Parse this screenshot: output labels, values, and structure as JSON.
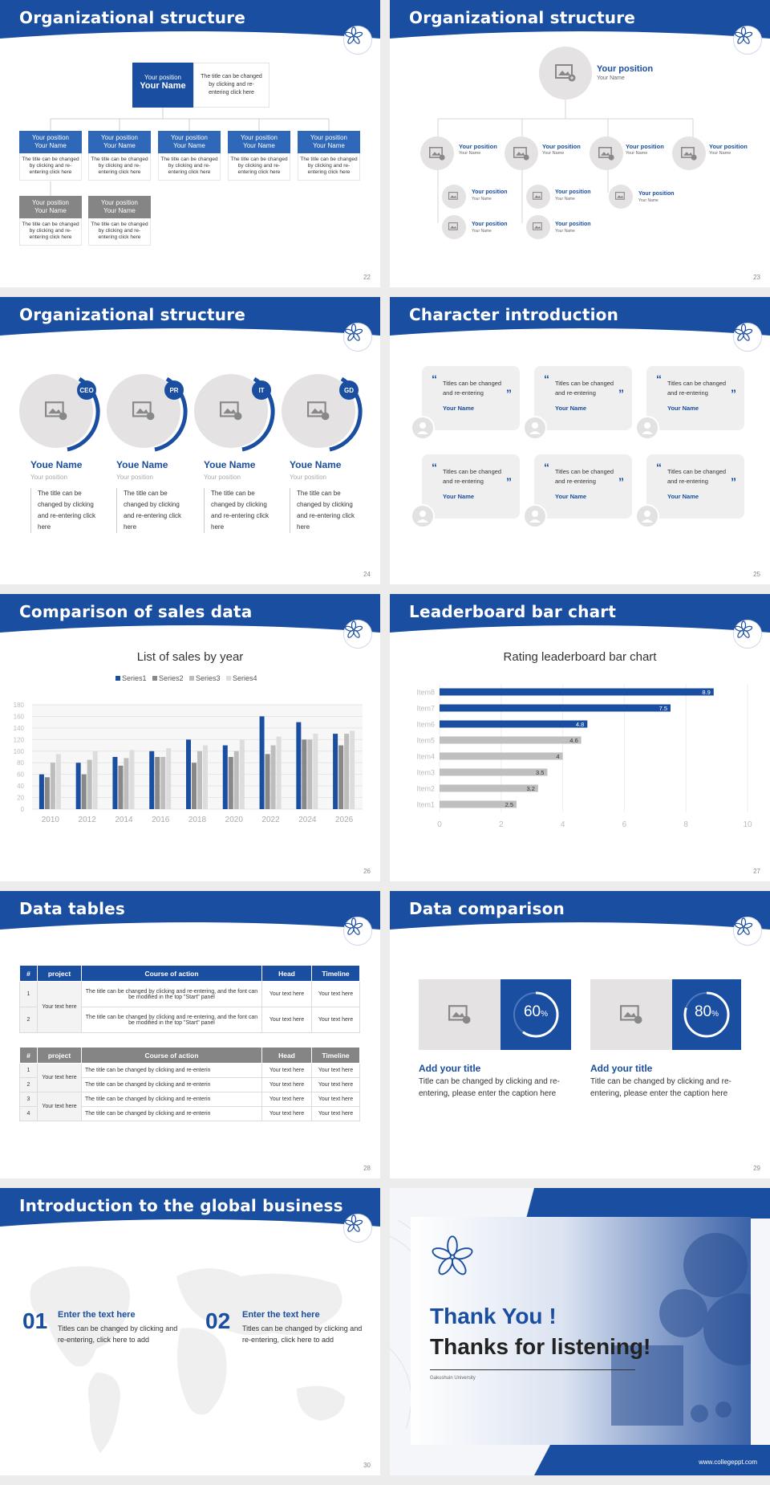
{
  "colors": {
    "brand": "#1a4ea0",
    "grey_box": "#858585",
    "light_grey": "#e4e2e2"
  },
  "slides": {
    "s22": {
      "title": "Organizational structure",
      "page": "22",
      "top": {
        "position": "Your position",
        "name": "Your Name",
        "desc": "The title can be changed by clicking and re-entering click here"
      },
      "row1": [
        {
          "position": "Your position",
          "name": "Your Name",
          "desc": "The title can be changed by clicking and re-entering click here"
        },
        {
          "position": "Your position",
          "name": "Your Name",
          "desc": "The title can be changed by clicking and re-entering click here"
        },
        {
          "position": "Your position",
          "name": "Your Name",
          "desc": "The title can be changed by clicking and re-entering click here"
        },
        {
          "position": "Your position",
          "name": "Your Name",
          "desc": "The title can be changed by clicking and re-entering click here"
        },
        {
          "position": "Your position",
          "name": "Your Name",
          "desc": "The title can be changed by clicking and re-entering click here"
        }
      ],
      "row2": [
        {
          "position": "Your position",
          "name": "Your Name",
          "desc": "The title can be changed by clicking and re-entering click here"
        },
        {
          "position": "Your position",
          "name": "Your Name",
          "desc": "The title can be changed by clicking and re-entering click here"
        }
      ]
    },
    "s23": {
      "title": "Organizational structure",
      "page": "23",
      "top": {
        "position": "Your position",
        "name": "Your Name"
      },
      "level2": [
        {
          "position": "Your position",
          "name": "Your Name"
        },
        {
          "position": "Your position",
          "name": "Your Name"
        },
        {
          "position": "Your position",
          "name": "Your Name"
        },
        {
          "position": "Your position",
          "name": "Your Name"
        }
      ],
      "level3": [
        {
          "position": "Your position",
          "name": "Your Name"
        },
        {
          "position": "Your position",
          "name": "Your Name"
        },
        {
          "position": "Your position",
          "name": "Your Name"
        },
        {
          "position": "Your position",
          "name": "Your Name"
        },
        {
          "position": "Your position",
          "name": "Your Name"
        }
      ]
    },
    "s24": {
      "title": "Organizational structure",
      "page": "24",
      "people": [
        {
          "badge": "CEO",
          "name": "Youe Name",
          "position": "Your position",
          "desc": "The title can be changed by clicking and re-entering click here"
        },
        {
          "badge": "PR",
          "name": "Youe Name",
          "position": "Your position",
          "desc": "The title can be changed by clicking and re-entering click here"
        },
        {
          "badge": "IT",
          "name": "Youe Name",
          "position": "Your position",
          "desc": "The title can be changed by clicking and re-entering click here"
        },
        {
          "badge": "GD",
          "name": "Youe Name",
          "position": "Your position",
          "desc": "The title can be changed by clicking and re-entering click here"
        }
      ]
    },
    "s25": {
      "title": "Character introduction",
      "page": "25",
      "cards": [
        {
          "text": "Titles can be changed and re-entering",
          "name": "Your Name"
        },
        {
          "text": "Titles can be changed and re-entering",
          "name": "Your Name"
        },
        {
          "text": "Titles can be changed and re-entering",
          "name": "Your Name"
        },
        {
          "text": "Titles can be changed and re-entering",
          "name": "Your Name"
        },
        {
          "text": "Titles can be changed and re-entering",
          "name": "Your Name"
        },
        {
          "text": "Titles can be changed and re-entering",
          "name": "Your Name"
        }
      ]
    },
    "s26": {
      "title": "Comparison of sales data",
      "page": "26"
    },
    "s27": {
      "title": "Leaderboard bar chart",
      "page": "27"
    },
    "s28": {
      "title": "Data tables",
      "page": "28",
      "t1": {
        "headers": [
          "#",
          "project",
          "Course of action",
          "Head",
          "Timeline"
        ],
        "merged_project": "Your text here",
        "rows": [
          {
            "num": "1",
            "action": "The title can be changed by clicking and re-entering, and the font can be modified in the top \"Start\" panel",
            "head": "Your text here",
            "timeline": "Your text here"
          },
          {
            "num": "2",
            "action": "The title can be changed by clicking and re-entering, and the font can be modified in the top \"Start\" panel",
            "head": "Your text here",
            "timeline": "Your text here"
          }
        ]
      },
      "t2": {
        "headers": [
          "#",
          "project",
          "Course of action",
          "Head",
          "Timeline"
        ],
        "merged_project_a": "Your text here",
        "merged_project_b": "Your text here",
        "rows": [
          {
            "num": "1",
            "action": "The title can be changed by clicking and re-enterin",
            "head": "Your text here",
            "timeline": "Your text here"
          },
          {
            "num": "2",
            "action": "The title can be changed by clicking and re-enterin",
            "head": "Your text here",
            "timeline": "Your text here"
          },
          {
            "num": "3",
            "action": "The title can be changed by clicking and re-enterin",
            "head": "Your text here",
            "timeline": "Your text here"
          },
          {
            "num": "4",
            "action": "The title can be changed by clicking and re-enterin",
            "head": "Your text here",
            "timeline": "Your text here"
          }
        ]
      }
    },
    "s29": {
      "title": "Data comparison",
      "page": "29",
      "items": [
        {
          "percent": 60,
          "value": "60",
          "unit": "%",
          "heading": "Add your title",
          "text": "Title can be changed by clicking and re-entering, please enter the caption here"
        },
        {
          "percent": 80,
          "value": "80",
          "unit": "%",
          "heading": "Add your title",
          "text": "Title can be changed by clicking and re-entering, please enter the caption here"
        }
      ]
    },
    "s30": {
      "title": "Introduction to the global business",
      "page": "30",
      "items": [
        {
          "num": "01",
          "heading": "Enter the text here",
          "text": "Titles can be changed by clicking and re-entering, click here to add"
        },
        {
          "num": "02",
          "heading": "Enter the text here",
          "text": "Titles can be changed by clicking and re-entering, click here to add"
        }
      ]
    },
    "s31": {
      "line1": "Thank You !",
      "line2": "Thanks for listening!",
      "university": "Gakushuin University",
      "url": "www.collegeppt.com"
    }
  },
  "chart_data": [
    {
      "type": "bar",
      "title": "List of sales by year",
      "categories": [
        "2010",
        "2012",
        "2014",
        "2016",
        "2018",
        "2020",
        "2022",
        "2024",
        "2026"
      ],
      "series": [
        {
          "name": "Series1",
          "color": "#1a4ea0",
          "values": [
            60,
            80,
            90,
            100,
            120,
            110,
            160,
            150,
            130
          ]
        },
        {
          "name": "Series2",
          "color": "#888888",
          "values": [
            55,
            60,
            75,
            90,
            80,
            90,
            95,
            120,
            110
          ]
        },
        {
          "name": "Series3",
          "color": "#bdbdbd",
          "values": [
            80,
            85,
            88,
            90,
            100,
            100,
            110,
            120,
            130
          ]
        },
        {
          "name": "Series4",
          "color": "#dddddd",
          "values": [
            95,
            100,
            102,
            105,
            110,
            120,
            125,
            130,
            135
          ]
        }
      ],
      "ylim": [
        0,
        180
      ],
      "yticks": [
        0,
        20,
        40,
        60,
        80,
        100,
        120,
        140,
        160,
        180
      ],
      "legend": "top"
    },
    {
      "type": "bar",
      "orientation": "horizontal",
      "title": "Rating leaderboard bar chart",
      "categories": [
        "Item8",
        "Item7",
        "Item6",
        "Item5",
        "Item4",
        "Item3",
        "Item2",
        "Item1"
      ],
      "values": [
        8.9,
        7.5,
        4.8,
        4.6,
        4,
        3.5,
        3.2,
        2.5
      ],
      "value_labels": [
        "8.9",
        "7.5",
        "4.8",
        "4.6",
        "4",
        "3.5",
        "3.2",
        "2.5"
      ],
      "highlight_count": 3,
      "xlim": [
        0,
        10
      ],
      "xticks": [
        "0",
        "2",
        "4",
        "6",
        "8",
        "10"
      ]
    }
  ]
}
